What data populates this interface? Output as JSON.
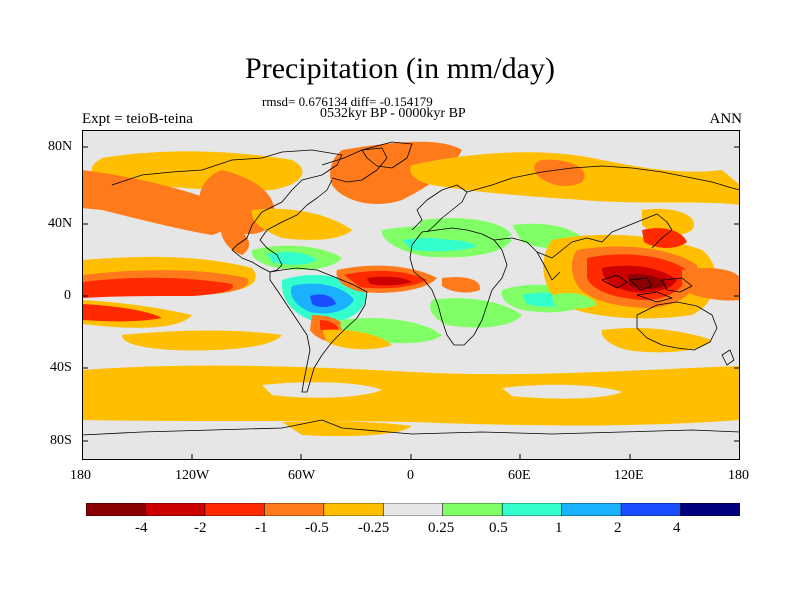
{
  "title": "Precipitation (in mm/day)",
  "stats_line": "rmsd= 0.676134 diff= -0.154179",
  "period_line": "0532kyr BP - 0000kyr BP",
  "left_label": "Expt = teioB-teina",
  "right_label": "ANN",
  "map": {
    "lat_tick_labels": [
      "80N",
      "40N",
      "0",
      "40S",
      "80S"
    ],
    "lon_tick_labels": [
      "180",
      "120W",
      "60W",
      "0",
      "60E",
      "120E",
      "180"
    ],
    "background_color": "#e6e6e6",
    "coastline_color": "#000000"
  },
  "colorbar": {
    "tick_labels": [
      "-4",
      "-2",
      "-1",
      "-0.5",
      "-0.25",
      "0.25",
      "0.5",
      "1",
      "2",
      "4"
    ],
    "colors": [
      "#8b0000",
      "#cc0000",
      "#ff2a00",
      "#ff7a1a",
      "#ffbf00",
      "#e6e6e6",
      "#80ff66",
      "#33ffcc",
      "#1ab2ff",
      "#1a4dff",
      "#000080"
    ]
  }
}
